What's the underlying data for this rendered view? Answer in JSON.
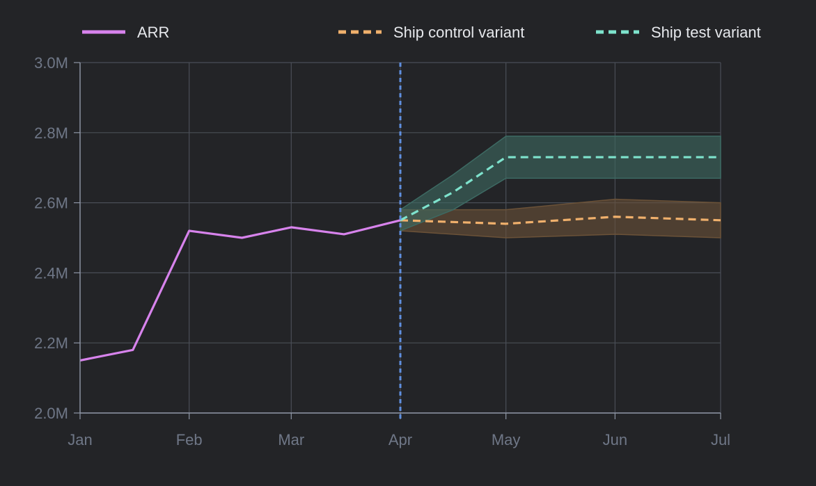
{
  "chart_data": {
    "type": "line",
    "title": "",
    "xlabel": "",
    "ylabel": "",
    "legend_position": "top",
    "grid": true,
    "x_ticks": [
      "Jan",
      "Feb",
      "Mar",
      "Apr",
      "May",
      "Jun",
      "Jul"
    ],
    "y_ticks": [
      "2.0M",
      "2.2M",
      "2.4M",
      "2.6M",
      "2.8M",
      "3.0M"
    ],
    "ylim": [
      2000000,
      3000000
    ],
    "xlim": [
      "2024-01-01",
      "2024-07-01"
    ],
    "divider_date": "2024-04-01",
    "colors": {
      "background": "#232427",
      "grid": "#4a4e57",
      "axis": "#8e96a6",
      "tick_text": "#6f7787",
      "legend_text": "#e6e8ec",
      "divider": "#5f8fe0"
    },
    "series": [
      {
        "name": "ARR",
        "style": "solid",
        "color": "#d783ec",
        "points": [
          {
            "x": "2024-01-01",
            "y": 2150000
          },
          {
            "x": "2024-01-16",
            "y": 2180000
          },
          {
            "x": "2024-02-01",
            "y": 2520000
          },
          {
            "x": "2024-02-16",
            "y": 2500000
          },
          {
            "x": "2024-03-01",
            "y": 2530000
          },
          {
            "x": "2024-03-16",
            "y": 2510000
          },
          {
            "x": "2024-04-01",
            "y": 2550000
          }
        ]
      },
      {
        "name": "Ship control variant",
        "style": "dashed",
        "color": "#f0b06c",
        "band_color": "#6b5238",
        "points": [
          {
            "x": "2024-04-01",
            "y": 2550000,
            "low": 2520000,
            "high": 2580000
          },
          {
            "x": "2024-05-01",
            "y": 2540000,
            "low": 2500000,
            "high": 2580000
          },
          {
            "x": "2024-06-01",
            "y": 2560000,
            "low": 2510000,
            "high": 2610000
          },
          {
            "x": "2024-07-01",
            "y": 2550000,
            "low": 2500000,
            "high": 2600000
          }
        ]
      },
      {
        "name": "Ship test variant",
        "style": "dashed",
        "color": "#7ee3cd",
        "band_color": "#3d6a63",
        "points": [
          {
            "x": "2024-04-01",
            "y": 2550000,
            "low": 2520000,
            "high": 2580000
          },
          {
            "x": "2024-04-16",
            "y": 2630000,
            "low": 2580000,
            "high": 2680000
          },
          {
            "x": "2024-05-01",
            "y": 2730000,
            "low": 2670000,
            "high": 2790000
          },
          {
            "x": "2024-06-01",
            "y": 2730000,
            "low": 2670000,
            "high": 2790000
          },
          {
            "x": "2024-07-01",
            "y": 2730000,
            "low": 2670000,
            "high": 2790000
          }
        ]
      }
    ]
  }
}
